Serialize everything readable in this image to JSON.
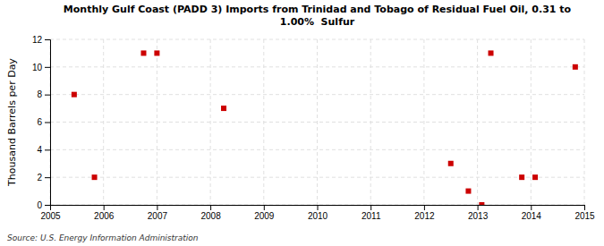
{
  "chart_data": {
    "type": "scatter",
    "title": "Monthly Gulf Coast (PADD 3) Imports from Trinidad and Tobago of Residual Fuel Oil, 0.31 to\n1.00%  Sulfur",
    "ylabel": "Thousand Barrels per Day",
    "annotations": [
      "Source: U.S. Energy Information Administration"
    ],
    "x": [
      2005.45,
      2005.83,
      2006.75,
      2007.0,
      2008.25,
      2012.5,
      2012.83,
      2013.08,
      2013.25,
      2013.83,
      2014.08,
      2014.83
    ],
    "values": [
      8,
      2,
      11,
      11,
      7,
      3,
      1,
      0,
      11,
      2,
      2,
      10
    ],
    "color": "#cc0000",
    "marker": "square",
    "xlim": [
      2005,
      2015
    ],
    "ylim": [
      0,
      12
    ],
    "xticks": [
      2005,
      2006,
      2007,
      2008,
      2009,
      2010,
      2011,
      2012,
      2013,
      2014,
      2015
    ],
    "yticks": [
      0,
      2,
      4,
      6,
      8,
      10,
      12
    ],
    "grid": true
  }
}
